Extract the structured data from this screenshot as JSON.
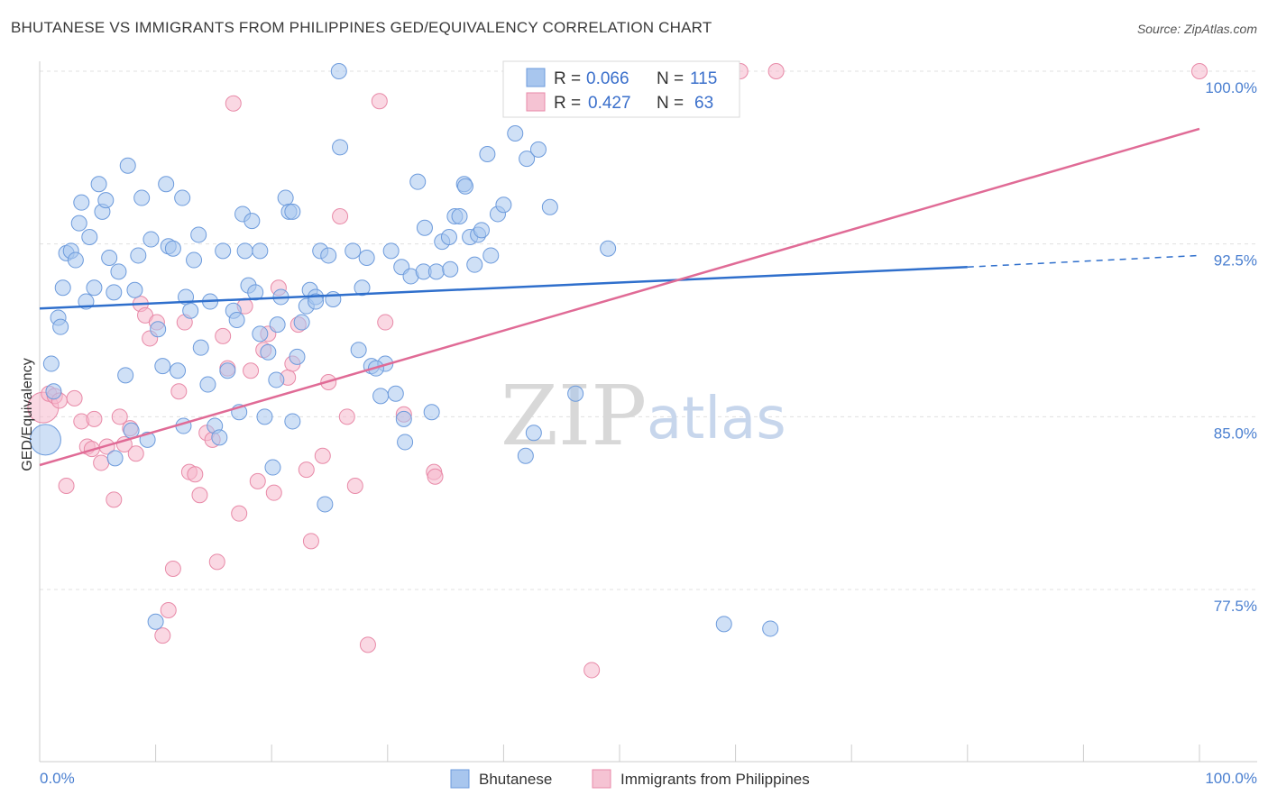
{
  "title": "BHUTANESE VS IMMIGRANTS FROM PHILIPPINES GED/EQUIVALENCY CORRELATION CHART",
  "source": "Source: ZipAtlas.com",
  "watermark": {
    "zip": "ZIP",
    "atlas": "atlas"
  },
  "colors": {
    "blue_fill": "#a8c6ee",
    "blue_stroke": "#6d9bdc",
    "blue_line": "#2f6fcc",
    "pink_fill": "#f5b8cc",
    "pink_stroke": "#e88aa8",
    "pink_line": "#e06b96",
    "tick_text": "#4a7fd0",
    "grid": "#e0e0e0"
  },
  "stats": [
    {
      "r_label": "R =",
      "r": "0.066",
      "n_label": "N =",
      "n": "115"
    },
    {
      "r_label": "R =",
      "r": "0.427",
      "n_label": "N =",
      "n": "63"
    }
  ],
  "chart_data": {
    "type": "scatter",
    "ylabel": "GED/Equivalency",
    "xlim": [
      0,
      100
    ],
    "ylim": [
      71.0,
      101.5
    ],
    "x_tick_labels": [
      "0.0%",
      "100.0%"
    ],
    "y_ticks": [
      77.5,
      85.0,
      92.5,
      100.0
    ],
    "y_tick_labels": [
      "77.5%",
      "85.0%",
      "92.5%",
      "100.0%"
    ],
    "grid": true,
    "legend_position": "bottom-center",
    "series": [
      {
        "name": "Bhutanese",
        "color": "#a8c6ee",
        "trend": {
          "x0": 0,
          "y0": 89.7,
          "x1": 80,
          "y1": 91.5,
          "dash_to_x": 100,
          "dash_to_y": 92.0
        },
        "points": [
          [
            0.5,
            84.0
          ],
          [
            1.0,
            87.3
          ],
          [
            1.2,
            86.1
          ],
          [
            1.6,
            89.3
          ],
          [
            1.8,
            88.9
          ],
          [
            2.0,
            90.6
          ],
          [
            2.3,
            92.1
          ],
          [
            2.7,
            92.2
          ],
          [
            3.1,
            91.8
          ],
          [
            3.4,
            93.4
          ],
          [
            3.6,
            94.3
          ],
          [
            4.0,
            90.0
          ],
          [
            4.3,
            92.8
          ],
          [
            4.7,
            90.6
          ],
          [
            5.1,
            95.1
          ],
          [
            5.4,
            93.9
          ],
          [
            5.7,
            94.4
          ],
          [
            6.0,
            91.9
          ],
          [
            6.4,
            90.4
          ],
          [
            6.8,
            91.3
          ],
          [
            7.4,
            86.8
          ],
          [
            7.6,
            95.9
          ],
          [
            7.9,
            84.4
          ],
          [
            8.2,
            90.5
          ],
          [
            8.5,
            92.0
          ],
          [
            8.8,
            94.5
          ],
          [
            9.3,
            84.0
          ],
          [
            9.6,
            92.7
          ],
          [
            10.2,
            88.8
          ],
          [
            10.6,
            87.2
          ],
          [
            10.9,
            95.1
          ],
          [
            11.1,
            92.4
          ],
          [
            11.5,
            92.3
          ],
          [
            11.9,
            87.0
          ],
          [
            12.3,
            94.5
          ],
          [
            12.6,
            90.2
          ],
          [
            13.0,
            89.6
          ],
          [
            13.3,
            91.8
          ],
          [
            13.7,
            92.9
          ],
          [
            13.9,
            88.0
          ],
          [
            14.5,
            86.4
          ],
          [
            15.1,
            84.6
          ],
          [
            15.5,
            84.1
          ],
          [
            15.8,
            92.2
          ],
          [
            16.2,
            87.0
          ],
          [
            16.7,
            89.6
          ],
          [
            17.2,
            85.2
          ],
          [
            17.5,
            93.8
          ],
          [
            17.7,
            92.2
          ],
          [
            18.0,
            90.7
          ],
          [
            18.3,
            93.5
          ],
          [
            18.6,
            90.4
          ],
          [
            19.0,
            92.2
          ],
          [
            19.4,
            85.0
          ],
          [
            19.7,
            87.8
          ],
          [
            20.1,
            82.8
          ],
          [
            20.5,
            89.0
          ],
          [
            20.8,
            90.2
          ],
          [
            21.2,
            94.5
          ],
          [
            21.5,
            93.9
          ],
          [
            21.8,
            84.8
          ],
          [
            22.2,
            87.6
          ],
          [
            22.6,
            89.1
          ],
          [
            23.0,
            89.8
          ],
          [
            23.3,
            90.5
          ],
          [
            23.8,
            90.2
          ],
          [
            24.2,
            92.2
          ],
          [
            24.6,
            81.2
          ],
          [
            24.9,
            92.0
          ],
          [
            25.3,
            90.1
          ],
          [
            25.8,
            100.0
          ],
          [
            25.9,
            96.7
          ],
          [
            27.0,
            92.2
          ],
          [
            27.5,
            87.9
          ],
          [
            27.8,
            90.6
          ],
          [
            28.2,
            91.9
          ],
          [
            28.6,
            87.2
          ],
          [
            29.4,
            85.9
          ],
          [
            29.8,
            87.3
          ],
          [
            30.3,
            92.2
          ],
          [
            30.7,
            86.0
          ],
          [
            31.2,
            91.5
          ],
          [
            31.5,
            83.9
          ],
          [
            32.0,
            91.1
          ],
          [
            32.6,
            95.2
          ],
          [
            33.1,
            91.3
          ],
          [
            33.8,
            85.2
          ],
          [
            34.2,
            91.3
          ],
          [
            34.7,
            92.6
          ],
          [
            35.3,
            92.8
          ],
          [
            35.8,
            93.7
          ],
          [
            36.2,
            93.7
          ],
          [
            36.6,
            95.1
          ],
          [
            37.1,
            92.8
          ],
          [
            37.5,
            91.6
          ],
          [
            37.8,
            92.9
          ],
          [
            38.1,
            93.1
          ],
          [
            38.6,
            96.4
          ],
          [
            38.9,
            92.0
          ],
          [
            39.5,
            93.8
          ],
          [
            40.0,
            94.2
          ],
          [
            41.0,
            97.3
          ],
          [
            42.0,
            96.2
          ],
          [
            42.6,
            84.3
          ],
          [
            43.0,
            96.6
          ],
          [
            44.0,
            94.1
          ],
          [
            49.0,
            92.3
          ],
          [
            59.0,
            76.0
          ],
          [
            63.0,
            75.8
          ],
          [
            10.0,
            76.1
          ],
          [
            12.4,
            84.6
          ],
          [
            6.5,
            83.2
          ],
          [
            14.7,
            90.0
          ],
          [
            17.0,
            89.2
          ],
          [
            19.0,
            88.6
          ],
          [
            21.8,
            93.9
          ],
          [
            31.4,
            84.9
          ],
          [
            36.7,
            95.0
          ],
          [
            41.9,
            83.3
          ],
          [
            46.2,
            86.0
          ],
          [
            23.8,
            90.0
          ],
          [
            29.0,
            87.1
          ],
          [
            33.2,
            93.2
          ],
          [
            35.4,
            91.4
          ],
          [
            20.4,
            86.6
          ]
        ]
      },
      {
        "name": "Immigrants from Philippines",
        "color": "#f5b8cc",
        "trend": {
          "x0": 0,
          "y0": 82.9,
          "x1": 100,
          "y1": 97.5
        },
        "points": [
          [
            0.3,
            85.4
          ],
          [
            0.8,
            86.0
          ],
          [
            1.3,
            85.9
          ],
          [
            1.7,
            85.7
          ],
          [
            2.3,
            82.0
          ],
          [
            3.0,
            85.8
          ],
          [
            3.6,
            84.8
          ],
          [
            4.1,
            83.7
          ],
          [
            4.5,
            83.6
          ],
          [
            4.7,
            84.9
          ],
          [
            5.3,
            83.0
          ],
          [
            5.8,
            83.7
          ],
          [
            6.4,
            81.4
          ],
          [
            6.9,
            85.0
          ],
          [
            7.3,
            83.8
          ],
          [
            7.8,
            84.5
          ],
          [
            8.3,
            83.4
          ],
          [
            8.7,
            89.9
          ],
          [
            9.1,
            89.4
          ],
          [
            9.5,
            88.4
          ],
          [
            10.1,
            89.1
          ],
          [
            10.6,
            75.5
          ],
          [
            11.1,
            76.6
          ],
          [
            11.5,
            78.4
          ],
          [
            12.0,
            86.1
          ],
          [
            12.5,
            89.1
          ],
          [
            12.9,
            82.6
          ],
          [
            13.4,
            82.5
          ],
          [
            13.8,
            81.6
          ],
          [
            14.4,
            84.3
          ],
          [
            14.9,
            84.0
          ],
          [
            15.3,
            78.7
          ],
          [
            15.8,
            88.5
          ],
          [
            16.2,
            87.1
          ],
          [
            16.7,
            98.6
          ],
          [
            17.2,
            80.8
          ],
          [
            17.7,
            89.8
          ],
          [
            18.2,
            87.0
          ],
          [
            18.8,
            82.2
          ],
          [
            19.3,
            87.9
          ],
          [
            19.7,
            88.6
          ],
          [
            20.2,
            81.7
          ],
          [
            20.6,
            90.6
          ],
          [
            21.4,
            86.7
          ],
          [
            21.8,
            87.3
          ],
          [
            22.3,
            89.0
          ],
          [
            23.0,
            82.7
          ],
          [
            23.4,
            79.6
          ],
          [
            24.4,
            83.3
          ],
          [
            24.9,
            86.5
          ],
          [
            25.9,
            93.7
          ],
          [
            26.5,
            85.0
          ],
          [
            27.2,
            82.0
          ],
          [
            28.3,
            75.1
          ],
          [
            29.3,
            98.7
          ],
          [
            29.8,
            89.1
          ],
          [
            31.4,
            85.1
          ],
          [
            34.0,
            82.6
          ],
          [
            34.1,
            82.4
          ],
          [
            47.6,
            74.0
          ],
          [
            60.4,
            100.0
          ],
          [
            63.5,
            100.0
          ],
          [
            100.0,
            100.0
          ]
        ]
      }
    ]
  }
}
